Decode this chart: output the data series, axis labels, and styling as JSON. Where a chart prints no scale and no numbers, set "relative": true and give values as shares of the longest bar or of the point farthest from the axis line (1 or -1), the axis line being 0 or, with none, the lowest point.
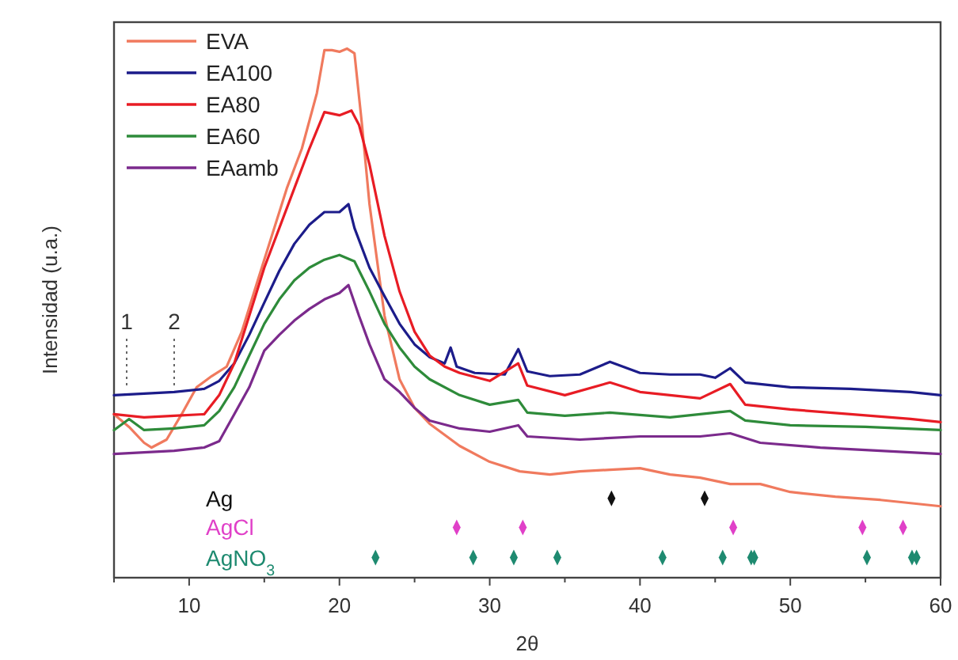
{
  "chart_data": {
    "type": "line",
    "relative": true,
    "xlabel": "2θ",
    "ylabel": "Intensidad (u.a.)",
    "xlim": [
      5,
      60
    ],
    "xticks": [
      {
        "value": 5,
        "label": null
      },
      10,
      {
        "value": 15,
        "label": null
      },
      20,
      {
        "value": 25,
        "label": null
      },
      30,
      {
        "value": 35,
        "label": null
      },
      40,
      {
        "value": 45,
        "label": null
      },
      50,
      {
        "value": 55,
        "label": null
      },
      60
    ],
    "legend": "top left",
    "grid": false,
    "marker": "none",
    "line_style": "solid",
    "annotations": [
      "1",
      "2"
    ],
    "series": [
      {
        "name": "EVA",
        "color": "#f07a5e",
        "x": [
          5,
          6,
          7,
          7.5,
          8.5,
          9.5,
          10.5,
          11.5,
          12.5,
          13.5,
          14.5,
          15.5,
          16.5,
          17.5,
          18.5,
          19,
          19.5,
          20,
          20.5,
          21,
          21.5,
          22,
          23,
          24,
          25,
          26,
          28,
          30,
          32,
          34,
          36,
          38,
          40,
          42,
          44,
          46,
          48,
          50,
          53,
          56,
          58,
          60
        ],
        "values": [
          0.309,
          0.285,
          0.255,
          0.246,
          0.261,
          0.309,
          0.36,
          0.381,
          0.399,
          0.465,
          0.556,
          0.646,
          0.736,
          0.811,
          0.916,
          0.997,
          0.997,
          0.994,
          1,
          0.991,
          0.856,
          0.706,
          0.495,
          0.375,
          0.321,
          0.291,
          0.249,
          0.219,
          0.201,
          0.195,
          0.201,
          0.204,
          0.207,
          0.195,
          0.189,
          0.177,
          0.177,
          0.162,
          0.153,
          0.147,
          0.141,
          0.135
        ]
      },
      {
        "name": "EA100",
        "color": "#1c1c8a",
        "x": [
          5,
          7,
          9,
          11,
          12,
          13,
          14,
          15,
          16,
          17,
          18,
          19,
          20,
          20.6,
          21,
          22,
          23,
          24,
          25,
          26,
          27,
          27.4,
          27.8,
          29,
          31,
          31.9,
          32.5,
          34,
          36,
          38,
          40,
          42,
          44,
          45,
          46,
          47,
          50,
          54,
          58,
          60
        ],
        "values": [
          0.345,
          0.348,
          0.351,
          0.357,
          0.372,
          0.405,
          0.459,
          0.52,
          0.58,
          0.631,
          0.667,
          0.691,
          0.691,
          0.706,
          0.661,
          0.586,
          0.532,
          0.48,
          0.441,
          0.417,
          0.405,
          0.435,
          0.399,
          0.387,
          0.384,
          0.432,
          0.39,
          0.381,
          0.384,
          0.408,
          0.387,
          0.384,
          0.384,
          0.378,
          0.396,
          0.369,
          0.36,
          0.357,
          0.351,
          0.345
        ]
      },
      {
        "name": "EA80",
        "color": "#e81c24",
        "x": [
          5,
          7,
          9,
          11,
          12,
          13,
          14,
          15,
          16,
          17,
          18,
          19,
          20,
          20.8,
          21.3,
          22,
          23,
          24,
          25,
          26,
          27,
          28,
          30,
          31.9,
          32.5,
          35,
          38,
          40,
          44,
          46,
          47,
          50,
          54,
          58,
          60
        ],
        "values": [
          0.309,
          0.303,
          0.306,
          0.309,
          0.345,
          0.405,
          0.495,
          0.586,
          0.661,
          0.736,
          0.811,
          0.88,
          0.874,
          0.883,
          0.856,
          0.781,
          0.646,
          0.541,
          0.465,
          0.42,
          0.399,
          0.387,
          0.372,
          0.405,
          0.363,
          0.345,
          0.369,
          0.351,
          0.339,
          0.366,
          0.327,
          0.318,
          0.309,
          0.3,
          0.294
        ]
      },
      {
        "name": "EA60",
        "color": "#2e8b3a",
        "x": [
          5,
          6,
          7,
          9,
          11,
          12,
          13,
          14,
          15,
          16,
          17,
          18,
          19,
          20,
          21,
          22,
          23,
          24,
          25,
          26,
          28,
          30,
          31.9,
          32.5,
          35,
          38,
          42,
          46,
          47,
          50,
          55,
          60
        ],
        "values": [
          0.279,
          0.3,
          0.279,
          0.282,
          0.288,
          0.315,
          0.36,
          0.42,
          0.48,
          0.526,
          0.562,
          0.586,
          0.601,
          0.61,
          0.598,
          0.541,
          0.48,
          0.435,
          0.399,
          0.375,
          0.345,
          0.327,
          0.336,
          0.312,
          0.306,
          0.312,
          0.303,
          0.315,
          0.297,
          0.288,
          0.285,
          0.279
        ]
      },
      {
        "name": "EAamb",
        "color": "#7b2a8c",
        "x": [
          5,
          7,
          9,
          11,
          12,
          13,
          14,
          15,
          16,
          17,
          18,
          19,
          20,
          20.6,
          21.3,
          22,
          23,
          24,
          25,
          26,
          28,
          30,
          31.9,
          32.5,
          36,
          40,
          44,
          46,
          48,
          52,
          56,
          60
        ],
        "values": [
          0.234,
          0.237,
          0.24,
          0.246,
          0.258,
          0.309,
          0.36,
          0.429,
          0.459,
          0.486,
          0.508,
          0.526,
          0.538,
          0.553,
          0.495,
          0.441,
          0.375,
          0.351,
          0.321,
          0.297,
          0.282,
          0.276,
          0.288,
          0.267,
          0.261,
          0.267,
          0.267,
          0.273,
          0.255,
          0.246,
          0.24,
          0.234
        ]
      },
      {
        "name": "Ag",
        "type": "scatter",
        "marker": "diamond",
        "color": "#111111",
        "x": [
          38.1,
          44.3
        ],
        "values": [
          0.15,
          0.15
        ]
      },
      {
        "name": "AgCl",
        "type": "scatter",
        "marker": "diamond",
        "color": "#e040c8",
        "x": [
          27.8,
          32.2,
          46.2,
          54.8,
          57.5
        ],
        "values": [
          0.095,
          0.095,
          0.095,
          0.095,
          0.095
        ]
      },
      {
        "name": "AgNO$_{3}$",
        "type": "scatter",
        "marker": "diamond",
        "color": "#1e8a70",
        "x": [
          22.4,
          28.9,
          31.6,
          34.5,
          41.5,
          45.5,
          47.4,
          47.6,
          55.1,
          58.1,
          58.4
        ],
        "values": [
          0.038,
          0.038,
          0.038,
          0.038,
          0.038,
          0.038,
          0.038,
          0.038,
          0.038,
          0.038,
          0.038
        ]
      }
    ]
  }
}
